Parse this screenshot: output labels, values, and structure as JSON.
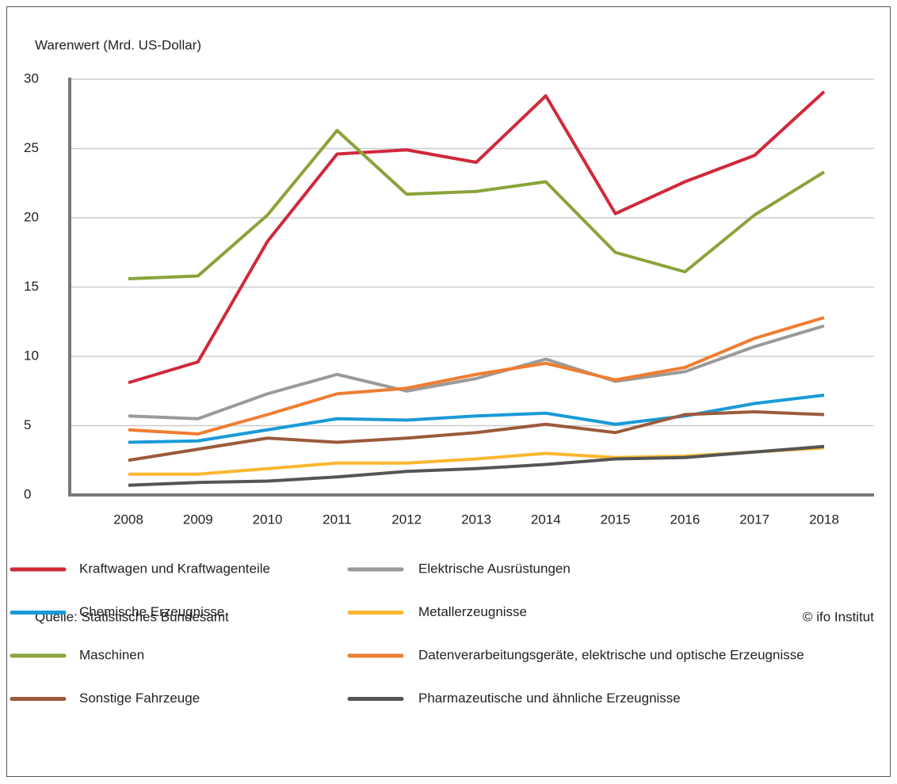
{
  "chart_data": {
    "type": "line",
    "y_label": "Warenwert (Mrd. US-Dollar)",
    "x": [
      2008,
      2009,
      2010,
      2011,
      2012,
      2013,
      2014,
      2015,
      2016,
      2017,
      2018
    ],
    "xticks": [
      2008,
      2009,
      2010,
      2011,
      2012,
      2013,
      2014,
      2015,
      2016,
      2017,
      2018
    ],
    "ylim": [
      0,
      30
    ],
    "yticks": [
      0,
      5,
      10,
      15,
      20,
      25,
      30
    ],
    "grid": true,
    "series": [
      {
        "name": "Kraftwagen und Kraftwagenteile",
        "color": "#d0293a",
        "values": [
          8.1,
          9.6,
          18.3,
          24.6,
          24.9,
          24.0,
          28.8,
          20.3,
          22.6,
          24.5,
          29.1
        ]
      },
      {
        "name": "Elektrische Ausrüstungen",
        "color": "#9a9a9a",
        "values": [
          5.7,
          5.5,
          7.3,
          8.7,
          7.5,
          8.4,
          9.8,
          8.2,
          8.9,
          10.7,
          12.2
        ]
      },
      {
        "name": "Chemische Erzeugnisse",
        "color": "#1a9ad6",
        "values": [
          3.8,
          3.9,
          4.7,
          5.5,
          5.4,
          5.7,
          5.9,
          5.1,
          5.7,
          6.6,
          7.2
        ]
      },
      {
        "name": "Metallerzeugnisse",
        "color": "#fbb731",
        "values": [
          1.5,
          1.5,
          1.9,
          2.3,
          2.3,
          2.6,
          3.0,
          2.7,
          2.8,
          3.1,
          3.4
        ]
      },
      {
        "name": "Maschinen",
        "color": "#8aa33a",
        "values": [
          15.6,
          15.8,
          20.2,
          26.3,
          21.7,
          21.9,
          22.6,
          17.5,
          16.1,
          20.2,
          23.3
        ]
      },
      {
        "name": "Datenverarbeitungsgeräte, elektrische und optische Erzeugnisse",
        "color": "#ef7d31",
        "values": [
          4.7,
          4.4,
          5.8,
          7.3,
          7.7,
          8.7,
          9.5,
          8.3,
          9.2,
          11.3,
          12.8
        ]
      },
      {
        "name": "Sonstige Fahrzeuge",
        "color": "#9c5a3c",
        "values": [
          2.5,
          3.3,
          4.1,
          3.8,
          4.1,
          4.5,
          5.1,
          4.5,
          5.8,
          6.0,
          5.8
        ]
      },
      {
        "name": "Pharmazeutische und ähnliche Erzeugnisse",
        "color": "#555555",
        "values": [
          0.7,
          0.9,
          1.0,
          1.3,
          1.7,
          1.9,
          2.2,
          2.6,
          2.7,
          3.1,
          3.5
        ]
      }
    ],
    "source": "Quelle: Statistisches Bundesamt",
    "credit": "© ifo Institut"
  }
}
